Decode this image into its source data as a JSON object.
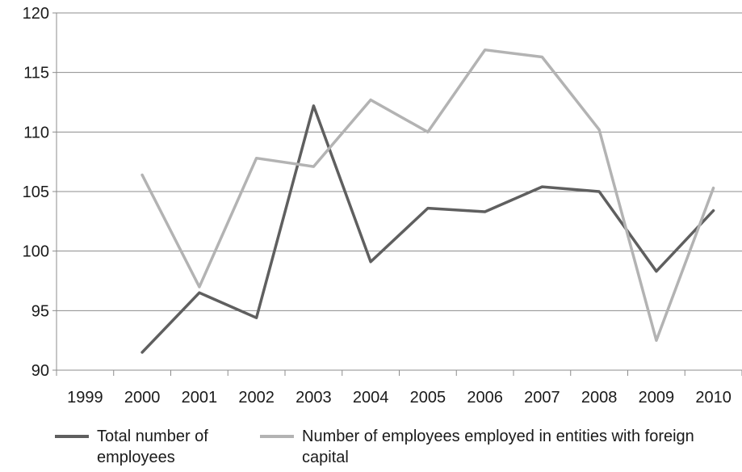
{
  "chart_data": {
    "type": "line",
    "title": "",
    "xlabel": "",
    "ylabel": "",
    "categories": [
      "1999",
      "2000",
      "2001",
      "2002",
      "2003",
      "2004",
      "2005",
      "2006",
      "2007",
      "2008",
      "2009",
      "2010"
    ],
    "ylim": [
      90,
      120
    ],
    "yticks": [
      90,
      95,
      100,
      105,
      110,
      115,
      120
    ],
    "grid": true,
    "legend_position": "bottom",
    "series": [
      {
        "name": "Total number of employees",
        "color": "#5f5f5f",
        "values": [
          null,
          91.5,
          96.5,
          94.4,
          112.2,
          99.1,
          103.6,
          103.3,
          105.4,
          105.0,
          98.3,
          103.4
        ]
      },
      {
        "name": "Number of employees employed in entities with foreign capital",
        "color": "#b3b3b3",
        "values": [
          null,
          106.4,
          97.0,
          107.8,
          107.1,
          112.7,
          110.0,
          116.9,
          116.3,
          110.2,
          92.5,
          105.3
        ]
      }
    ]
  }
}
